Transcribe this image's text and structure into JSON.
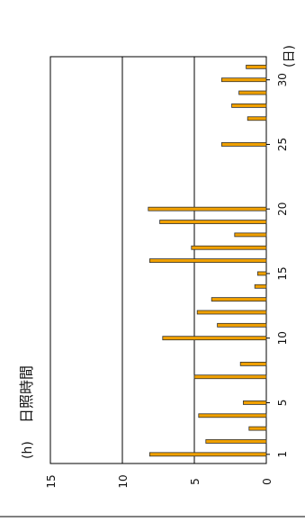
{
  "chart_data": {
    "type": "bar",
    "title": "日照時間",
    "ylabel": "(h)",
    "xlabel": "(日)",
    "ylim": [
      0,
      15
    ],
    "y_ticks": [
      "0",
      "5",
      "10",
      "15"
    ],
    "x_tick_labels": [
      "1",
      "5",
      "10",
      "15",
      "20",
      "25",
      "30"
    ],
    "categories": [
      "1",
      "2",
      "3",
      "4",
      "5",
      "6",
      "7",
      "8",
      "9",
      "10",
      "11",
      "12",
      "13",
      "14",
      "15",
      "16",
      "17",
      "18",
      "19",
      "20",
      "21",
      "22",
      "23",
      "24",
      "25",
      "26",
      "27",
      "28",
      "29",
      "30",
      "31"
    ],
    "values": [
      8.1,
      4.2,
      1.2,
      4.7,
      1.6,
      0.0,
      5.0,
      1.8,
      0.0,
      7.2,
      3.4,
      4.8,
      3.8,
      0.8,
      0.6,
      8.1,
      5.2,
      2.2,
      7.4,
      8.2,
      0.0,
      0.0,
      0.0,
      0.0,
      3.1,
      0.0,
      1.3,
      2.4,
      1.9,
      3.1,
      1.4
    ],
    "bar_color": "#f0a000",
    "bar_outline": "#333333",
    "grid": true
  }
}
